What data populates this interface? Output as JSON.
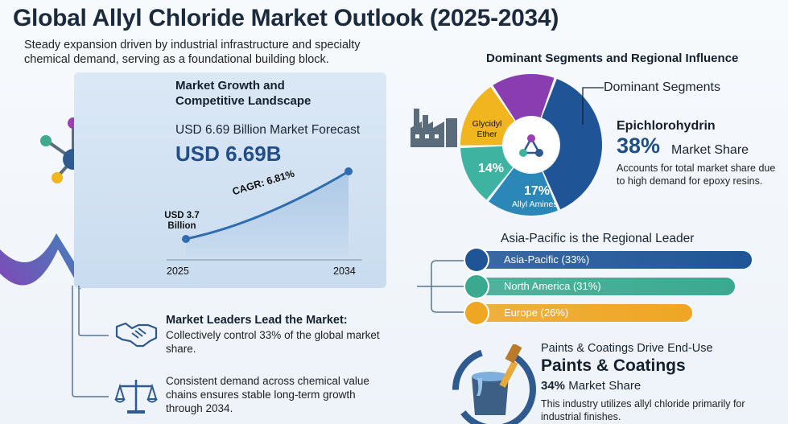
{
  "title": "Global Allyl Chloride Market Outlook (2025-2034)",
  "subtitle": "Steady expansion driven by industrial infrastructure and specialty chemical demand, serving as a foundational building block.",
  "growth": {
    "heading": "Market Growth and Competitive Landscape",
    "forecast_line": "USD 6.69 Billion Market Forecast",
    "big_value": "USD 6.69B",
    "start_value": "USD 3.7 Billion",
    "cagr": "CAGR: 6.81%",
    "year_start": "2025",
    "year_end": "2034"
  },
  "leaders": {
    "title": "Market Leaders Lead the Market:",
    "text": "Collectively control 33% of the global market share."
  },
  "stability": {
    "text": "Consistent demand across chemical value chains ensures stable long-term growth through 2034."
  },
  "segments": {
    "heading": "Dominant Segments and Regional Influence",
    "dominant_label": "Dominant Segments",
    "name": "Epichlorohydrin",
    "pct": "38%",
    "pct_label": "Market Share",
    "desc": "Accounts for total market share due to high demand for epoxy resins.",
    "donut": [
      {
        "label": "",
        "value": 38,
        "color": "#1f5596"
      },
      {
        "label": "17%",
        "sub": "Allyl Amines",
        "value": 17,
        "color": "#2a87b8"
      },
      {
        "label": "14%",
        "value": 14,
        "color": "#3fb3a2"
      },
      {
        "label": "Glycidyl Ether",
        "value": 16,
        "color": "#f0b51f"
      },
      {
        "label": "",
        "value": 15,
        "color": "#8a3db0"
      }
    ],
    "allyl_pct": "17%",
    "allyl_label": "Allyl Amines",
    "other_pct": "14%",
    "glycidyl_label": "Glycidyl Ether"
  },
  "regions": {
    "heading": "Asia-Pacific is the Regional Leader",
    "items": [
      {
        "label": "Asia-Pacific (33%)",
        "value": 33,
        "color": "#1f5596"
      },
      {
        "label": "North America (31%)",
        "value": 31,
        "color": "#3aa98f"
      },
      {
        "label": "Europe (26%)",
        "value": 26,
        "color": "#efa623"
      }
    ]
  },
  "paints": {
    "heading": "Paints & Coatings Drive End-Use",
    "name": "Paints & Coatings",
    "pct": "34%",
    "pct_label": "Market Share",
    "desc": "This industry utilizes allyl chloride primarily for industrial finishes."
  },
  "icons": [
    "molecule-icon",
    "growth-arrow-icon",
    "handshake-icon",
    "balance-scale-icon",
    "factory-icon",
    "paint-bucket-icon"
  ]
}
